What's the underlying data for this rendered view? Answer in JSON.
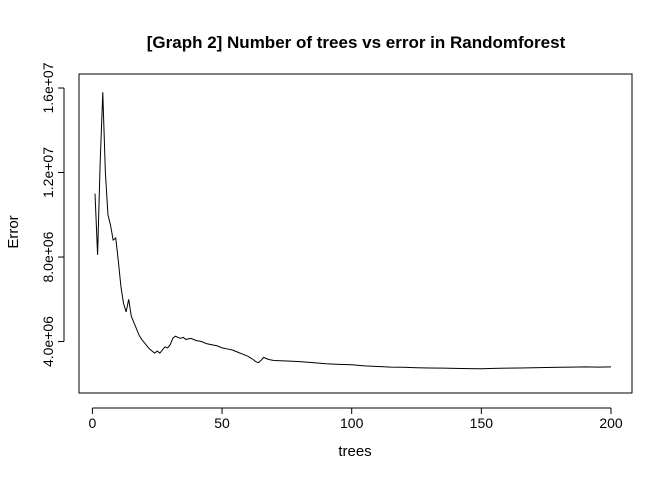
{
  "chart_data": {
    "type": "line",
    "title": "[Graph 2] Number of trees vs error in Randomforest",
    "xlabel": "trees",
    "ylabel": "Error",
    "xlim": [
      1,
      200
    ],
    "ylim": [
      2700000,
      16000000
    ],
    "x_ticks": [
      0,
      50,
      100,
      150,
      200
    ],
    "x_tick_labels": [
      "0",
      "50",
      "100",
      "150",
      "200"
    ],
    "y_ticks": [
      4000000,
      8000000,
      12000000,
      16000000
    ],
    "y_tick_labels": [
      "4.0e+06",
      "8.0e+06",
      "1.2e+07",
      "1.6e+07"
    ],
    "grid": false,
    "legend": "none",
    "line_color": "#000000",
    "series": [
      {
        "x": [
          1,
          2,
          3,
          4,
          5,
          6,
          7,
          8,
          9,
          10,
          11,
          12,
          13,
          14,
          15,
          16,
          17,
          18,
          19,
          20,
          21,
          22,
          23,
          24,
          25,
          26,
          27,
          28,
          29,
          30,
          31,
          32,
          33,
          34,
          35,
          36,
          38,
          40,
          42,
          44,
          46,
          48,
          50,
          52,
          54,
          56,
          58,
          60,
          62,
          63,
          64,
          65,
          66,
          68,
          70,
          75,
          80,
          85,
          90,
          95,
          100,
          105,
          110,
          115,
          120,
          125,
          130,
          135,
          140,
          145,
          150,
          155,
          160,
          165,
          170,
          175,
          180,
          185,
          190,
          195,
          200
        ],
        "values": [
          11000000,
          8100000,
          12500000,
          15800000,
          12000000,
          10000000,
          9500000,
          8800000,
          8900000,
          7800000,
          6600000,
          5800000,
          5400000,
          6000000,
          5200000,
          4900000,
          4600000,
          4300000,
          4100000,
          3950000,
          3800000,
          3650000,
          3550000,
          3450000,
          3550000,
          3450000,
          3600000,
          3750000,
          3700000,
          3850000,
          4150000,
          4250000,
          4200000,
          4150000,
          4200000,
          4100000,
          4150000,
          4050000,
          4000000,
          3900000,
          3850000,
          3800000,
          3700000,
          3650000,
          3600000,
          3500000,
          3400000,
          3300000,
          3150000,
          3050000,
          3000000,
          3100000,
          3250000,
          3150000,
          3100000,
          3080000,
          3050000,
          3000000,
          2950000,
          2920000,
          2900000,
          2850000,
          2820000,
          2790000,
          2780000,
          2760000,
          2750000,
          2740000,
          2730000,
          2720000,
          2710000,
          2730000,
          2740000,
          2750000,
          2760000,
          2770000,
          2780000,
          2790000,
          2800000,
          2790000,
          2800000
        ]
      }
    ]
  }
}
